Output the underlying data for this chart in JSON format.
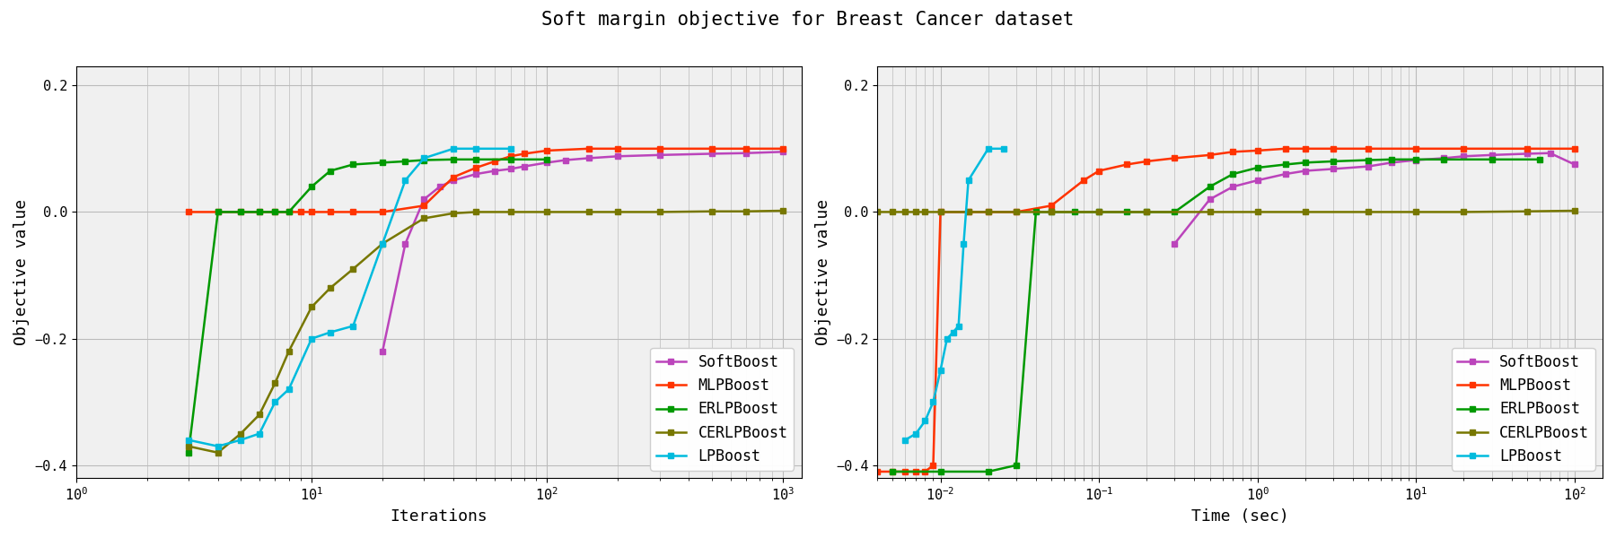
{
  "title": "Soft margin objective for Breast Cancer dataset",
  "title_fontsize": 15,
  "title_fontfamily": "monospace",
  "ylabel": "Objective value",
  "xlabel_left": "Iterations",
  "xlabel_right": "Time (sec)",
  "ylim": [
    -0.42,
    0.23
  ],
  "yticks": [
    -0.4,
    -0.2,
    0.0,
    0.2
  ],
  "colors": {
    "SoftBoost": "#bb44bb",
    "MLPBoost": "#ff3300",
    "ERLPBoost": "#009900",
    "CERLPBoost": "#777700",
    "LPBoost": "#00bbdd"
  },
  "series_left": {
    "SoftBoost": {
      "x": [
        20,
        25,
        30,
        35,
        40,
        50,
        60,
        70,
        80,
        100,
        120,
        150,
        200,
        300,
        500,
        700,
        1000
      ],
      "y": [
        -0.22,
        -0.05,
        0.02,
        0.04,
        0.05,
        0.06,
        0.065,
        0.068,
        0.072,
        0.078,
        0.082,
        0.085,
        0.088,
        0.09,
        0.092,
        0.093,
        0.095
      ]
    },
    "MLPBoost": {
      "x": [
        3,
        4,
        5,
        6,
        7,
        8,
        9,
        10,
        12,
        15,
        20,
        30,
        40,
        50,
        60,
        70,
        80,
        100,
        150,
        200,
        300,
        500,
        700,
        1000
      ],
      "y": [
        0.0,
        0.0,
        0.0,
        0.0,
        0.0,
        0.0,
        0.0,
        0.0,
        0.0,
        0.0,
        0.0,
        0.01,
        0.055,
        0.07,
        0.08,
        0.088,
        0.092,
        0.097,
        0.1,
        0.1,
        0.1,
        0.1,
        0.1,
        0.1
      ]
    },
    "ERLPBoost": {
      "x": [
        3,
        4,
        5,
        6,
        7,
        8,
        10,
        12,
        15,
        20,
        25,
        30,
        40,
        50,
        70,
        100
      ],
      "y": [
        -0.38,
        0.0,
        0.0,
        0.0,
        0.0,
        0.0,
        0.04,
        0.065,
        0.075,
        0.078,
        0.08,
        0.082,
        0.083,
        0.083,
        0.083,
        0.083
      ]
    },
    "CERLPBoost": {
      "x": [
        3,
        4,
        5,
        6,
        7,
        8,
        10,
        12,
        15,
        20,
        30,
        40,
        50,
        70,
        100,
        150,
        200,
        300,
        500,
        700,
        1000
      ],
      "y": [
        -0.37,
        -0.38,
        -0.35,
        -0.32,
        -0.27,
        -0.22,
        -0.15,
        -0.12,
        -0.09,
        -0.05,
        -0.01,
        -0.002,
        0.0,
        0.0,
        0.0,
        0.0,
        0.0,
        0.0,
        0.001,
        0.001,
        0.002
      ]
    },
    "LPBoost": {
      "x": [
        3,
        4,
        5,
        6,
        7,
        8,
        10,
        12,
        15,
        20,
        25,
        30,
        40,
        50,
        70
      ],
      "y": [
        -0.36,
        -0.37,
        -0.36,
        -0.35,
        -0.3,
        -0.28,
        -0.2,
        -0.19,
        -0.18,
        -0.05,
        0.05,
        0.085,
        0.1,
        0.1,
        0.1
      ]
    }
  },
  "series_right": {
    "SoftBoost": {
      "x": [
        0.3,
        0.5,
        0.7,
        1.0,
        1.5,
        2.0,
        3.0,
        5.0,
        7.0,
        10,
        15,
        20,
        30,
        50,
        70,
        100
      ],
      "y": [
        -0.05,
        0.02,
        0.04,
        0.05,
        0.06,
        0.065,
        0.068,
        0.072,
        0.078,
        0.082,
        0.085,
        0.088,
        0.09,
        0.092,
        0.093,
        0.075
      ]
    },
    "MLPBoost": {
      "x": [
        0.004,
        0.005,
        0.006,
        0.007,
        0.008,
        0.009,
        0.01,
        0.015,
        0.02,
        0.03,
        0.05,
        0.08,
        0.1,
        0.15,
        0.2,
        0.3,
        0.5,
        0.7,
        1.0,
        1.5,
        2,
        3,
        5,
        10,
        20,
        50,
        100
      ],
      "y": [
        -0.41,
        -0.41,
        -0.41,
        -0.41,
        -0.41,
        -0.4,
        0.0,
        0.0,
        0.0,
        0.0,
        0.01,
        0.05,
        0.065,
        0.075,
        0.08,
        0.085,
        0.09,
        0.095,
        0.097,
        0.1,
        0.1,
        0.1,
        0.1,
        0.1,
        0.1,
        0.1,
        0.1
      ]
    },
    "ERLPBoost": {
      "x": [
        0.005,
        0.01,
        0.02,
        0.03,
        0.04,
        0.05,
        0.07,
        0.1,
        0.15,
        0.2,
        0.3,
        0.5,
        0.7,
        1.0,
        1.5,
        2,
        3,
        5,
        7,
        10,
        15,
        30,
        60
      ],
      "y": [
        -0.41,
        -0.41,
        -0.41,
        -0.4,
        0.0,
        0.0,
        0.0,
        0.0,
        0.0,
        0.0,
        0.0,
        0.04,
        0.06,
        0.07,
        0.075,
        0.078,
        0.08,
        0.082,
        0.083,
        0.083,
        0.083,
        0.083,
        0.083
      ]
    },
    "CERLPBoost": {
      "x": [
        0.004,
        0.005,
        0.006,
        0.007,
        0.008,
        0.01,
        0.015,
        0.02,
        0.03,
        0.05,
        0.1,
        0.2,
        0.5,
        1.0,
        2,
        5,
        10,
        20,
        50,
        100
      ],
      "y": [
        0.0,
        0.0,
        0.0,
        0.0,
        0.0,
        0.0,
        0.0,
        0.0,
        0.0,
        0.0,
        0.0,
        0.0,
        0.0,
        0.0,
        0.0,
        0.0,
        0.0,
        0.0,
        0.001,
        0.002
      ]
    },
    "LPBoost": {
      "x": [
        0.006,
        0.007,
        0.008,
        0.009,
        0.01,
        0.011,
        0.012,
        0.013,
        0.014,
        0.015,
        0.02,
        0.025
      ],
      "y": [
        -0.36,
        -0.35,
        -0.33,
        -0.3,
        -0.25,
        -0.2,
        -0.19,
        -0.18,
        -0.05,
        0.05,
        0.1,
        0.1
      ]
    }
  },
  "legend_order": [
    "SoftBoost",
    "MLPBoost",
    "ERLPBoost",
    "CERLPBoost",
    "LPBoost"
  ],
  "marker": "s",
  "markersize": 5,
  "linewidth": 1.8,
  "grid_color": "#bbbbbb",
  "bg_color": "#f0f0f0"
}
